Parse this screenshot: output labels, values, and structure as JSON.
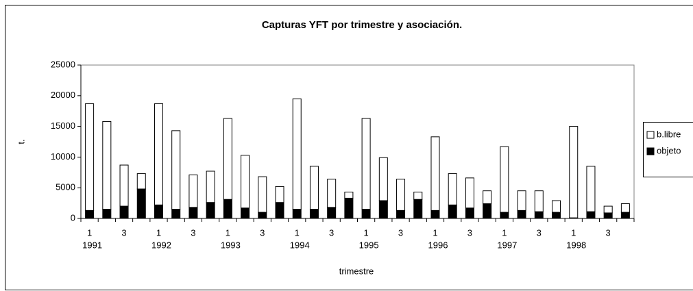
{
  "chart_data": {
    "type": "stacked_bar",
    "title": "Capturas YFT por trimestre y asociación.",
    "x_label": "trimestre",
    "y_label": "t.",
    "categories": [
      "1",
      null,
      "3",
      null,
      "1",
      null,
      "3",
      null,
      "1",
      null,
      "3",
      null,
      "1",
      null,
      "3",
      null,
      "1",
      null,
      "3",
      null,
      "1",
      null,
      "3",
      null,
      "1",
      null,
      "3",
      null,
      "1",
      null,
      "3",
      null
    ],
    "years": [
      "1991",
      "1992",
      "1993",
      "1994",
      "1995",
      "1996",
      "1997",
      "1998"
    ],
    "series": [
      {
        "name": "objeto",
        "color": "#000000",
        "values": [
          1300,
          1500,
          2000,
          4800,
          2200,
          1500,
          1800,
          2600,
          3100,
          1700,
          1000,
          2600,
          1500,
          1500,
          1800,
          3300,
          1500,
          2900,
          1300,
          3100,
          1300,
          2200,
          1700,
          2400,
          1000,
          1300,
          1100,
          1000,
          100,
          1100,
          900,
          1000
        ]
      },
      {
        "name": "b.libre",
        "color": "#ffffff",
        "values": [
          17400,
          14300,
          6700,
          2500,
          16500,
          12800,
          5300,
          5100,
          13200,
          8600,
          5800,
          2600,
          18000,
          7000,
          4600,
          1000,
          14800,
          7000,
          5100,
          1200,
          12000,
          5100,
          4900,
          2100,
          10700,
          3200,
          3400,
          1900,
          14900,
          7400,
          1100,
          1400
        ]
      }
    ],
    "ylim": [
      0,
      25000
    ],
    "yticks": [
      0,
      5000,
      10000,
      15000,
      20000,
      25000
    ],
    "legend": "right"
  }
}
